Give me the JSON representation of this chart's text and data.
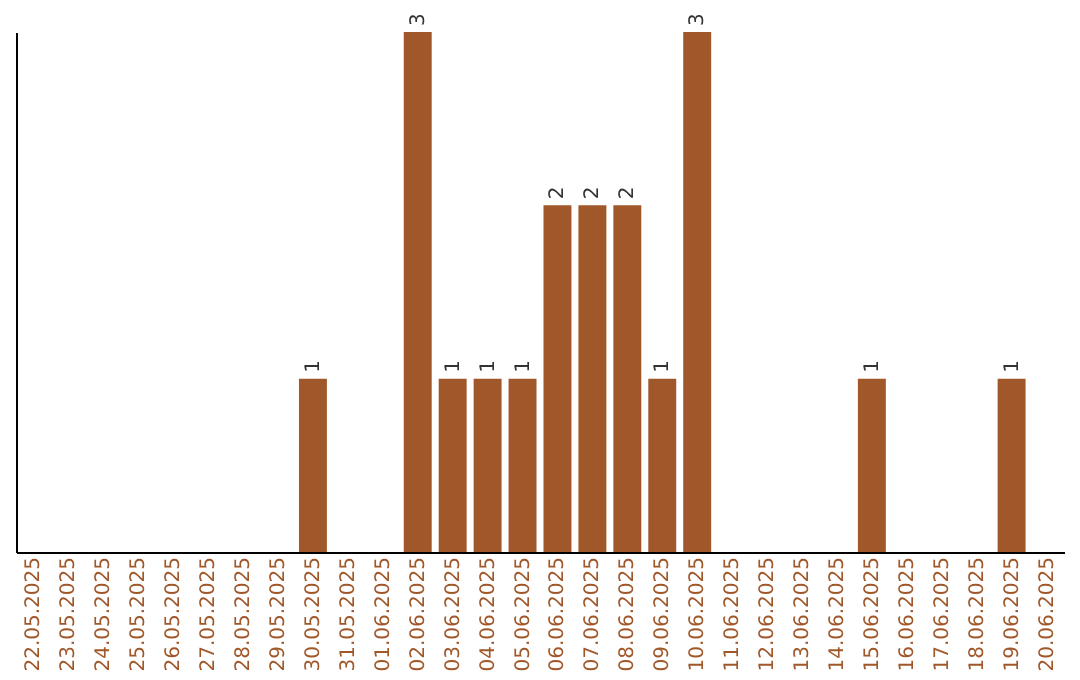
{
  "chart_data": {
    "type": "bar",
    "categories": [
      "22.05.2025",
      "23.05.2025",
      "24.05.2025",
      "25.05.2025",
      "26.05.2025",
      "27.05.2025",
      "28.05.2025",
      "29.05.2025",
      "30.05.2025",
      "31.05.2025",
      "01.06.2025",
      "02.06.2025",
      "03.06.2025",
      "04.06.2025",
      "05.06.2025",
      "06.06.2025",
      "07.06.2025",
      "08.06.2025",
      "09.06.2025",
      "10.06.2025",
      "11.06.2025",
      "12.06.2025",
      "13.06.2025",
      "14.06.2025",
      "15.06.2025",
      "16.06.2025",
      "17.06.2025",
      "18.06.2025",
      "19.06.2025",
      "20.06.2025"
    ],
    "values": [
      0,
      0,
      0,
      0,
      0,
      0,
      0,
      0,
      1,
      0,
      0,
      3,
      1,
      1,
      1,
      2,
      2,
      2,
      1,
      3,
      0,
      0,
      0,
      0,
      1,
      0,
      0,
      0,
      1,
      0
    ],
    "value_labels": [
      null,
      null,
      null,
      null,
      null,
      null,
      null,
      null,
      "1",
      null,
      null,
      "3",
      "1",
      "1",
      "1",
      "2",
      "2",
      "2",
      "1",
      "3",
      null,
      null,
      null,
      null,
      "1",
      null,
      null,
      null,
      "1",
      null
    ],
    "color": "#a0582a",
    "tick_labels": "x"
  }
}
